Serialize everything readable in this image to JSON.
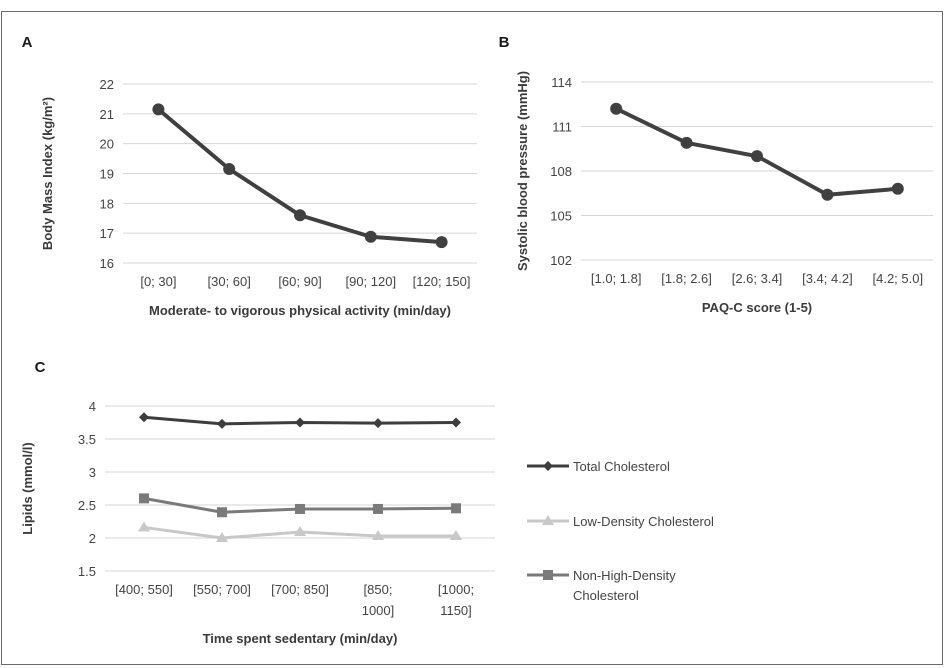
{
  "chart_data": [
    {
      "panel": "A",
      "type": "line",
      "xlabel": "Moderate- to vigorous physical activity (min/day)",
      "ylabel": "Body Mass Index (kg/m²)",
      "categories": [
        "[0; 30]",
        "[30; 60]",
        "[60; 90]",
        "[90; 120]",
        "[120; 150]"
      ],
      "yticks": [
        "16",
        "17",
        "18",
        "19",
        "20",
        "21",
        "22"
      ],
      "ylim": [
        16,
        22
      ],
      "grid": true,
      "series": [
        {
          "values": [
            21.15,
            19.15,
            17.6,
            16.88,
            16.7
          ],
          "color": "#404040",
          "marker": "circle"
        }
      ]
    },
    {
      "panel": "B",
      "type": "line",
      "xlabel": "PAQ-C score (1-5)",
      "ylabel": "Systolic blood pressure (mmHg)",
      "categories": [
        "[1.0; 1.8]",
        "[1.8; 2.6]",
        "[2.6; 3.4]",
        "[3.4; 4.2]",
        "[4.2; 5.0]"
      ],
      "yticks": [
        "102",
        "105",
        "108",
        "111",
        "114"
      ],
      "ylim": [
        102,
        114
      ],
      "grid": true,
      "series": [
        {
          "values": [
            112.2,
            109.9,
            109.0,
            106.4,
            106.8
          ],
          "color": "#404040",
          "marker": "circle"
        }
      ]
    },
    {
      "panel": "C",
      "type": "line",
      "xlabel": "Time spent sedentary (min/day)",
      "ylabel": "Lipids (mmol/l)",
      "categories": [
        [
          "[400; 550]"
        ],
        [
          "[550; 700]"
        ],
        [
          "[700; 850]"
        ],
        [
          "[850;",
          "1000]"
        ],
        [
          "[1000;",
          "1150]"
        ]
      ],
      "yticks": [
        "1.5",
        "2",
        "2.5",
        "3",
        "3.5",
        "4"
      ],
      "ylim": [
        1.5,
        4
      ],
      "grid": true,
      "legend_position": "right",
      "series": [
        {
          "name": [
            "Total Cholesterol"
          ],
          "values": [
            3.83,
            3.73,
            3.75,
            3.74,
            3.75
          ],
          "color": "#3d3d3d",
          "marker": "diamond"
        },
        {
          "name": [
            "Low-Density Cholesterol"
          ],
          "values": [
            2.16,
            2.0,
            2.09,
            2.03,
            2.03
          ],
          "color": "#c8c8c8",
          "marker": "triangle"
        },
        {
          "name": [
            "Non-High-Density",
            "Cholesterol"
          ],
          "values": [
            2.6,
            2.39,
            2.44,
            2.44,
            2.45
          ],
          "color": "#7a7a7a",
          "marker": "square"
        }
      ]
    }
  ]
}
